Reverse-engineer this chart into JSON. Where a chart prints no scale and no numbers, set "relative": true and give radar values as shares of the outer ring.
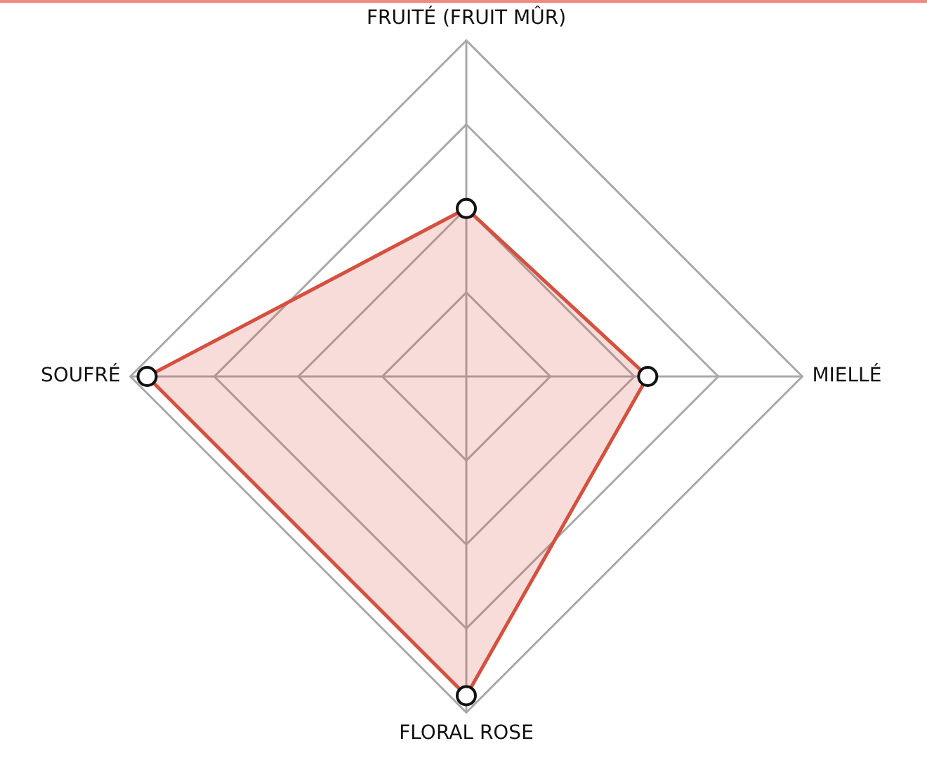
{
  "chart_data": {
    "type": "radar",
    "relative": true,
    "categories": [
      "FRUITÉ (FRUIT MÛR)",
      "MIELLÉ",
      "FLORAL ROSE",
      "SOUFRÉ"
    ],
    "series": [
      {
        "color": "#d5503f",
        "values": [
          0.5,
          0.54,
          0.95,
          0.95
        ]
      }
    ],
    "marker": "circle",
    "grid": true
  }
}
